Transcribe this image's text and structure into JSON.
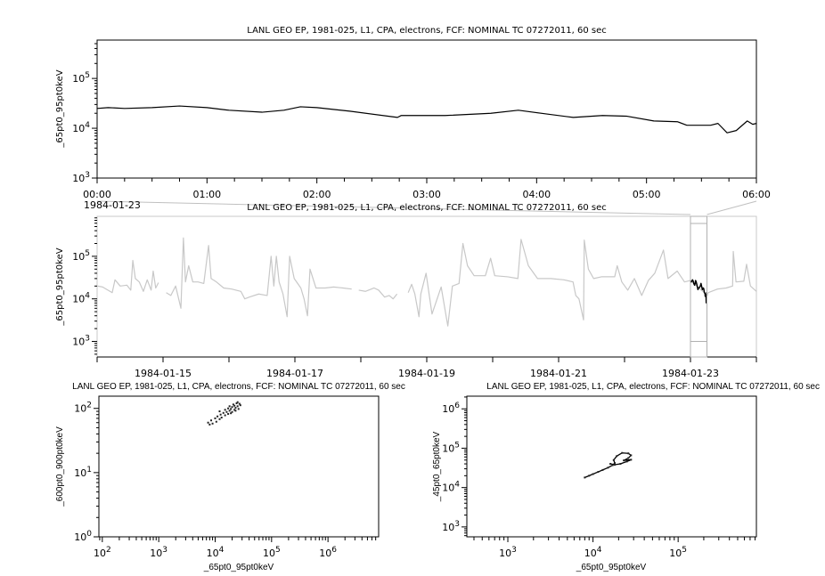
{
  "chart_data": [
    {
      "id": "p1",
      "type": "line",
      "title": "LANL GEO EP, 1981-025, L1, CPA, electrons, FCF: NOMINAL TC 07272011, 60 sec",
      "xlabel": "",
      "ylabel": "_65pt0_95pt0keV",
      "date_label": "1984-01-23",
      "x_scale": "time",
      "xlim": [
        "00:00",
        "06:00"
      ],
      "x_ticks": [
        "00:00",
        "01:00",
        "02:00",
        "03:00",
        "04:00",
        "05:00",
        "06:00"
      ],
      "y_scale": "log",
      "ylim": [
        1000,
        590000
      ],
      "y_ticks": [
        "10^3",
        "10^4",
        "10^5"
      ],
      "line_color": "#000000",
      "series": [
        {
          "x": [
            "00:00",
            "00:06",
            "00:15",
            "00:30",
            "00:45",
            "01:00",
            "01:12",
            "01:30",
            "01:42",
            "01:51",
            "02:00",
            "02:18",
            "02:44",
            "02:46",
            "03:10",
            "03:35",
            "03:50",
            "04:07",
            "04:20",
            "04:36",
            "04:49",
            "05:04",
            "05:17",
            "05:22",
            "05:35",
            "05:39",
            "05:44",
            "05:49",
            "05:55",
            "05:58",
            "06:00"
          ],
          "y": [
            25000,
            26000,
            25000,
            26000,
            28000,
            26000,
            23000,
            21000,
            23000,
            27000,
            26000,
            22000,
            16500,
            18000,
            18000,
            20000,
            23000,
            19000,
            16500,
            18000,
            17500,
            14000,
            13500,
            11500,
            11500,
            12500,
            8100,
            9000,
            14000,
            12000,
            12500
          ]
        }
      ]
    },
    {
      "id": "p2",
      "type": "line",
      "title": "LANL GEO EP, 1981-025, L1, CPA, electrons, FCF: NOMINAL TC 07272011, 60 sec",
      "xlabel": "",
      "ylabel": "_65pt0_95pt0keV",
      "x_scale": "time",
      "xlim": [
        "1984-01-14T00:00",
        "1984-01-24T00:00"
      ],
      "x_ticks": [
        "1984-01-15",
        "1984-01-17",
        "1984-01-19",
        "1984-01-21",
        "1984-01-23"
      ],
      "y_scale": "log",
      "ylim": [
        430,
        870000
      ],
      "y_ticks": [
        "10^3",
        "10^4",
        "10^5"
      ],
      "line_color": "#c8c8c8",
      "highlight_color": "#000000",
      "highlight_range": [
        "1984-01-23T00:00",
        "1984-01-23T06:00"
      ],
      "series": [
        {
          "segments": [
            {
              "x": [
                "1984-01-14T00:15",
                "1984-01-14T02:00",
                "1984-01-14T05:30",
                "1984-01-14T06:30",
                "1984-01-14T08:25",
                "1984-01-14T10:50",
                "1984-01-14T12:15",
                "1984-01-14T13:00",
                "1984-01-14T13:55",
                "1984-01-14T15:20",
                "1984-01-14T16:50",
                "1984-01-14T18:15",
                "1984-01-14T19:40",
                "1984-01-14T20:25",
                "1984-01-14T21:20",
                "1984-01-14T22:20"
              ],
              "y": [
                20000,
                19000,
                14000,
                28000,
                20000,
                21000,
                16000,
                80000,
                30000,
                25000,
                15000,
                28000,
                16000,
                45000,
                18000,
                24000
              ]
            },
            {
              "x": [
                "1984-01-15T01:10",
                "1984-01-15T02:50",
                "1984-01-15T04:35",
                "1984-01-15T06:30",
                "1984-01-15T07:25",
                "1984-01-15T08:10",
                "1984-01-15T09:20",
                "1984-01-15T10:50",
                "1984-01-15T12:45",
                "1984-01-15T14:50",
                "1984-01-15T16:35",
                "1984-01-15T17:30",
                "1984-01-15T19:25",
                "1984-01-15T22:05",
                "1984-01-16T01:00",
                "1984-01-16T04:20",
                "1984-01-16T05:45",
                "1984-01-16T07:25",
                "1984-01-16T10:50",
                "1984-01-16T13:55",
                "1984-01-16T15:20",
                "1984-01-16T16:20",
                "1984-01-16T17:15",
                "1984-01-16T18:15",
                "1984-01-16T19:40",
                "1984-01-16T21:10",
                "1984-01-16T22:05",
                "1984-01-16T23:45",
                "1984-01-17T02:10",
                "1984-01-17T03:20",
                "1984-01-17T04:35",
                "1984-01-17T05:30",
                "1984-01-17T07:40",
                "1984-01-17T11:00",
                "1984-01-17T14:10",
                "1984-01-17T17:30",
                "1984-01-17T20:40"
              ],
              "y": [
                14000,
                12000,
                20000,
                6000,
                270000,
                25000,
                60000,
                25000,
                25000,
                23000,
                180000,
                30000,
                25000,
                18000,
                17000,
                15000,
                10000,
                11000,
                13000,
                12000,
                100000,
                20000,
                100000,
                25000,
                13000,
                3800,
                100000,
                30000,
                18000,
                10000,
                4000,
                50000,
                18000,
                18000,
                19000,
                18000,
                17000
              ]
            },
            {
              "x": [
                "1984-01-17T23:15",
                "1984-01-18T01:40",
                "1984-01-18T04:50",
                "1984-01-18T06:30",
                "1984-01-18T08:40",
                "1984-01-18T10:20",
                "1984-01-18T11:45",
                "1984-01-18T13:10"
              ],
              "y": [
                16000,
                15000,
                18000,
                16000,
                11000,
                12000,
                10000,
                13000
              ]
            },
            {
              "x": [
                "1984-01-18T17:15",
                "1984-01-18T18:30",
                "1984-01-18T19:40",
                "1984-01-18T21:10",
                "1984-01-18T21:50",
                "1984-01-18T23:45",
                "1984-01-19T01:55",
                "1984-01-19T05:15",
                "1984-01-19T07:40",
                "1984-01-19T09:20",
                "1984-01-19T11:45",
                "1984-01-19T13:10",
                "1984-01-19T14:50",
                "1984-01-19T17:15",
                "1984-01-19T21:20",
                "1984-01-19T23:15",
                "1984-01-20T00:45",
                "1984-01-20T05:30",
                "1984-01-20T09:10",
                "1984-01-20T10:20",
                "1984-01-20T13:00",
                "1984-01-20T16:20",
                "1984-01-20T21:10",
                "1984-01-21T01:55",
                "1984-01-21T05:15",
                "1984-01-21T06:15",
                "1984-01-21T07:25",
                "1984-01-21T09:05",
                "1984-01-21T09:20",
                "1984-01-21T10:50",
                "1984-01-21T12:45",
                "1984-01-21T15:35",
                "1984-01-21T20:25",
                "1984-01-21T21:20",
                "1984-01-21T23:00",
                "1984-01-22T01:10",
                "1984-01-22T03:35",
                "1984-01-22T06:15",
                "1984-01-22T08:40",
                "1984-01-22T11:00",
                "1984-01-22T14:10",
                "1984-01-22T15:50",
                "1984-01-22T19:10",
                "1984-01-22T21:50",
                "1984-01-23T00:00",
                "1984-01-23T03:00",
                "1984-01-23T06:00",
                "1984-01-23T06:30",
                "1984-01-23T09:50",
                "1984-01-23T13:00",
                "1984-01-23T15:20",
                "1984-01-23T15:35",
                "1984-01-23T16:35",
                "1984-01-23T19:25",
                "1984-01-23T20:25",
                "1984-01-23T21:50",
                "1984-01-24T00:00"
              ],
              "y": [
                14000,
                22000,
                13000,
                3800,
                13000,
                40000,
                4400,
                19000,
                2300,
                20000,
                23000,
                200000,
                60000,
                35000,
                35000,
                90000,
                35000,
                33000,
                30000,
                250000,
                60000,
                30000,
                30000,
                28000,
                25000,
                12000,
                10000,
                3200,
                240000,
                50000,
                30000,
                33000,
                33000,
                60000,
                25000,
                16000,
                30000,
                12000,
                27000,
                40000,
                140000,
                30000,
                45000,
                25000,
                27000,
                18000,
                12500,
                14000,
                17000,
                18000,
                20000,
                130000,
                25000,
                26000,
                65000,
                20000,
                15000
              ]
            }
          ]
        }
      ]
    },
    {
      "id": "p3",
      "type": "scatter",
      "title": "LANL GEO EP, 1981-025, L1, CPA, electrons, FCF: NOMINAL TC 07272011, 60 sec",
      "xlabel": "_65pt0_95pt0keV",
      "ylabel": "_600pt0_900pt0keV",
      "x_scale": "log",
      "y_scale": "log",
      "xlim": [
        87,
        7900000
      ],
      "ylim": [
        1,
        155
      ],
      "x_ticks": [
        "10^2",
        "10^3",
        "10^4",
        "10^5",
        "10^6"
      ],
      "y_ticks": [
        "10^0",
        "10^1",
        "10^2"
      ],
      "points": [
        [
          7500,
          60
        ],
        [
          8000,
          56
        ],
        [
          8500,
          65
        ],
        [
          9000,
          58
        ],
        [
          10000,
          70
        ],
        [
          10500,
          62
        ],
        [
          11000,
          75
        ],
        [
          12000,
          68
        ],
        [
          12500,
          80
        ],
        [
          13000,
          72
        ],
        [
          14000,
          85
        ],
        [
          15000,
          78
        ],
        [
          15000,
          95
        ],
        [
          16000,
          88
        ],
        [
          17000,
          100
        ],
        [
          17000,
          82
        ],
        [
          18000,
          92
        ],
        [
          18000,
          108
        ],
        [
          19000,
          98
        ],
        [
          20000,
          105
        ],
        [
          20000,
          88
        ],
        [
          21000,
          115
        ],
        [
          22000,
          95
        ],
        [
          22000,
          110
        ],
        [
          23000,
          102
        ],
        [
          24000,
          120
        ],
        [
          25000,
          108
        ],
        [
          26000,
          98
        ],
        [
          27000,
          118
        ],
        [
          28000,
          112
        ],
        [
          12000,
          90
        ],
        [
          25000,
          125
        ],
        [
          19000,
          84
        ],
        [
          23000,
          92
        ]
      ]
    },
    {
      "id": "p4",
      "type": "scatter",
      "title": "LANL GEO EP, 1981-025, L1, CPA, electrons, FCF: NOMINAL TC 07272011, 60 sec",
      "xlabel": "_65pt0_95pt0keV",
      "ylabel": "_45pt0_65pt0keV",
      "x_scale": "log",
      "y_scale": "log",
      "xlim": [
        330,
        830000
      ],
      "ylim": [
        560,
        2100000
      ],
      "x_ticks": [
        "10^3",
        "10^4",
        "10^5"
      ],
      "y_ticks": [
        "10^3",
        "10^4",
        "10^5",
        "10^6"
      ],
      "points": [
        [
          8000,
          18000
        ],
        [
          9000,
          20000
        ],
        [
          10000,
          22000
        ],
        [
          11500,
          25000
        ],
        [
          13000,
          28000
        ],
        [
          15000,
          32000
        ],
        [
          17000,
          37000
        ],
        [
          18000,
          42000
        ],
        [
          17500,
          50000
        ],
        [
          19000,
          63000
        ],
        [
          22000,
          76000
        ],
        [
          26000,
          74000
        ],
        [
          28000,
          66000
        ],
        [
          26000,
          56000
        ],
        [
          23000,
          49000
        ],
        [
          28000,
          51000
        ],
        [
          25000,
          46000
        ],
        [
          21000,
          40000
        ],
        [
          18000,
          38000
        ],
        [
          16000,
          40000
        ]
      ]
    }
  ]
}
